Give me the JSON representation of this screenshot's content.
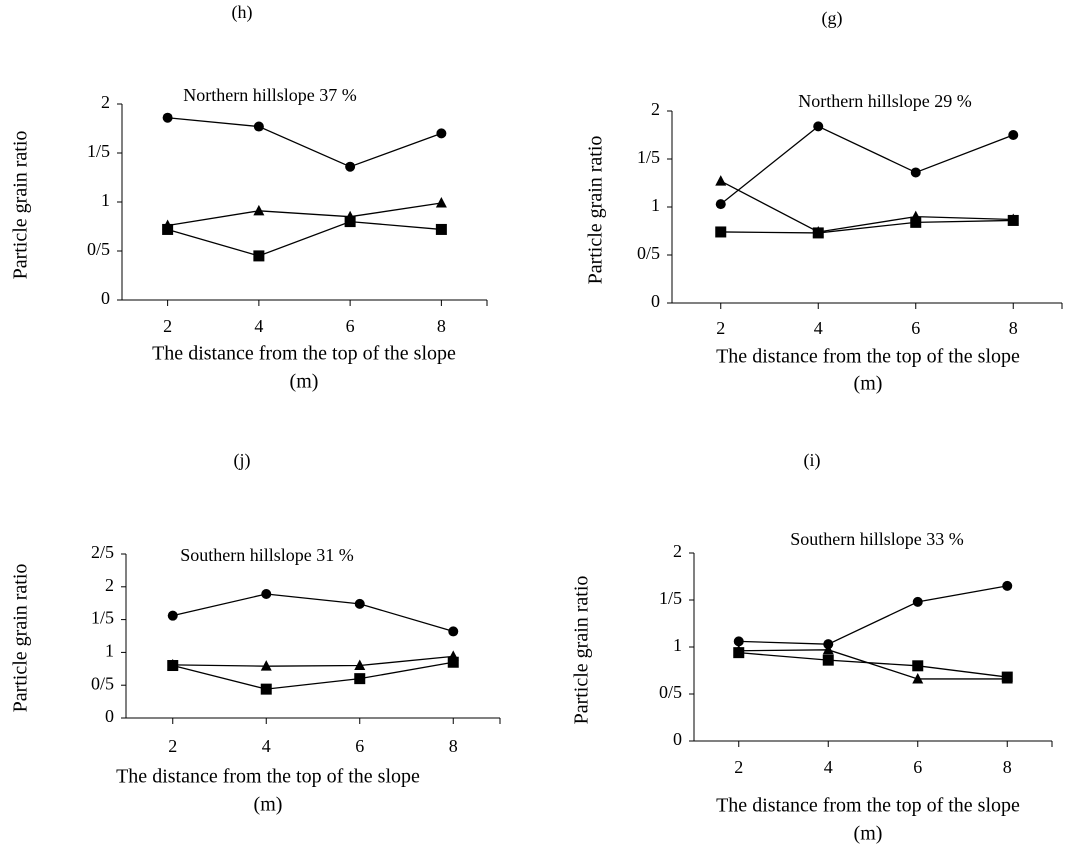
{
  "chart_data": [
    {
      "type": "line",
      "panel": "(h)",
      "title": "Northern hillslope 37 %",
      "ylabel": "Particle grain ratio",
      "xlabel": [
        "The distance from the top of the slope",
        "(m)"
      ],
      "x": [
        2,
        4,
        6,
        8
      ],
      "xlim": [
        1,
        9
      ],
      "xticks": [
        2,
        4,
        6,
        8
      ],
      "ylim": [
        0,
        2
      ],
      "yticks": [
        0,
        {
          "value": 0.5,
          "label": "0/5"
        },
        1,
        {
          "value": 1.5,
          "label": "1/5"
        },
        2
      ],
      "series": [
        {
          "marker": "circle",
          "color": "#000000",
          "values": [
            1.86,
            1.77,
            1.36,
            1.7
          ]
        },
        {
          "marker": "triangle",
          "color": "#000000",
          "values": [
            0.76,
            0.91,
            0.85,
            0.99
          ]
        },
        {
          "marker": "square",
          "color": "#000000",
          "values": [
            0.72,
            0.45,
            0.8,
            0.72
          ]
        }
      ]
    },
    {
      "type": "line",
      "panel": "(g)",
      "title": "Northern hillslope 29 %",
      "ylabel": "Particle grain ratio",
      "xlabel": [
        "The distance from the top of the slope",
        "(m)"
      ],
      "x": [
        2,
        4,
        6,
        8
      ],
      "xlim": [
        1,
        9
      ],
      "xticks": [
        2,
        4,
        6,
        8
      ],
      "ylim": [
        0,
        2
      ],
      "yticks": [
        0,
        {
          "value": 0.5,
          "label": "0/5"
        },
        1,
        {
          "value": 1.5,
          "label": "1/5"
        },
        2
      ],
      "series": [
        {
          "marker": "circle",
          "color": "#000000",
          "values": [
            1.03,
            1.84,
            1.36,
            1.75
          ]
        },
        {
          "marker": "triangle",
          "color": "#000000",
          "values": [
            1.27,
            0.74,
            0.9,
            0.87
          ]
        },
        {
          "marker": "square",
          "color": "#000000",
          "values": [
            0.74,
            0.73,
            0.84,
            0.86
          ]
        }
      ]
    },
    {
      "type": "line",
      "panel": "(j)",
      "title": "Southern hillslope 31 %",
      "ylabel": "Particle grain ratio",
      "xlabel": [
        "The distance from the top of the slope",
        "(m)"
      ],
      "x": [
        2,
        4,
        6,
        8
      ],
      "xlim": [
        1,
        9
      ],
      "xticks": [
        2,
        4,
        6,
        8
      ],
      "ylim": [
        0,
        2.5
      ],
      "yticks": [
        0,
        {
          "value": 0.5,
          "label": "0/5"
        },
        1,
        {
          "value": 1.5,
          "label": "1/5"
        },
        2,
        {
          "value": 2.5,
          "label": "2/5"
        }
      ],
      "series": [
        {
          "marker": "circle",
          "color": "#000000",
          "values": [
            1.56,
            1.89,
            1.74,
            1.32
          ]
        },
        {
          "marker": "triangle",
          "color": "#000000",
          "values": [
            0.81,
            0.79,
            0.8,
            0.94
          ]
        },
        {
          "marker": "square",
          "color": "#000000",
          "values": [
            0.8,
            0.44,
            0.6,
            0.85
          ]
        }
      ]
    },
    {
      "type": "line",
      "panel": "(i)",
      "title": "Southern hillslope 33 %",
      "ylabel": "Particle grain ratio",
      "xlabel": [
        "The distance from the top of the slope",
        "(m)"
      ],
      "x": [
        2,
        4,
        6,
        8
      ],
      "xlim": [
        1,
        9
      ],
      "xticks": [
        2,
        4,
        6,
        8
      ],
      "ylim": [
        0,
        2
      ],
      "yticks": [
        0,
        {
          "value": 0.5,
          "label": "0/5"
        },
        1,
        {
          "value": 1.5,
          "label": "1/5"
        },
        2
      ],
      "series": [
        {
          "marker": "circle",
          "color": "#000000",
          "values": [
            1.06,
            1.03,
            1.48,
            1.65
          ]
        },
        {
          "marker": "triangle",
          "color": "#000000",
          "values": [
            0.96,
            0.97,
            0.66,
            0.66
          ]
        },
        {
          "marker": "square",
          "color": "#000000",
          "values": [
            0.94,
            0.86,
            0.8,
            0.68
          ]
        }
      ]
    }
  ]
}
